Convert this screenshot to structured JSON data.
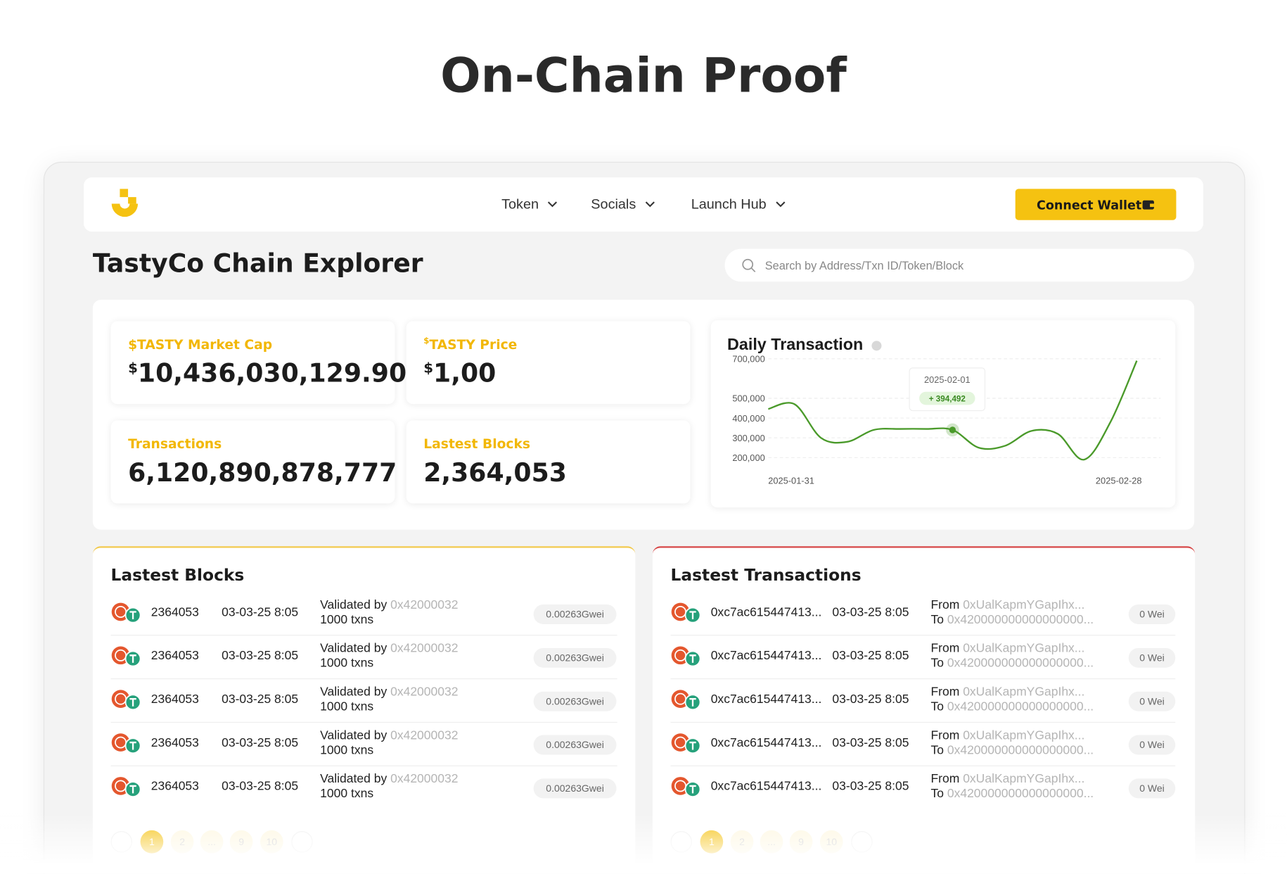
{
  "header": {
    "title": "On-Chain Proof"
  },
  "nav": {
    "items": [
      "Token",
      "Socials",
      "Launch Hub"
    ],
    "button": "Connect Wallet"
  },
  "page": {
    "title": "TastyCo Chain Explorer",
    "search_placeholder": "Search by Address/Txn ID/Token/Block"
  },
  "stats": [
    {
      "label": "$TASTY Market Cap",
      "prefix": "$",
      "value": "10,436,030,129.90"
    },
    {
      "label_prefix": "$",
      "label": "TASTY Price",
      "prefix": "$",
      "value": "1,00"
    },
    {
      "label": "Transactions",
      "value": "6,120,890,878,777"
    },
    {
      "label": "Lastest Blocks",
      "value": "2,364,053"
    }
  ],
  "chart_data": {
    "type": "line",
    "title": "Daily Transaction",
    "categories": [
      "2025-01-31",
      null,
      null,
      null,
      null,
      null,
      null,
      null,
      null,
      null,
      null,
      null,
      null,
      null,
      "2025-02-28"
    ],
    "series": [
      {
        "color": "#4a9a2a",
        "values": [
          446000,
          470000,
          300000,
          280000,
          340000,
          345000,
          345000,
          340000,
          250000,
          260000,
          335000,
          320000,
          190000,
          380000,
          690000
        ]
      }
    ],
    "ylim": [
      180000,
      720000
    ],
    "yticks": [
      {
        "value": 200000,
        "label": "200,000"
      },
      {
        "value": 300000,
        "label": "300,000"
      },
      {
        "value": 400000,
        "label": "400,000"
      },
      {
        "value": 500000,
        "label": "500,000"
      },
      {
        "value": 700000,
        "label": "700,000"
      }
    ],
    "grid": true,
    "tooltip": {
      "date": "2025-02-01",
      "value": "+ 394,492"
    }
  },
  "blocks": {
    "title": "Lastest Blocks",
    "rows": [
      {
        "block": "2364053",
        "time": "03-03-25 8:05",
        "validated_label": "Validated by",
        "validator": "0x42000032",
        "txns": "1000 txns",
        "fee": "0.00263Gwei"
      },
      {
        "block": "2364053",
        "time": "03-03-25 8:05",
        "validated_label": "Validated by",
        "validator": "0x42000032",
        "txns": "1000 txns",
        "fee": "0.00263Gwei"
      },
      {
        "block": "2364053",
        "time": "03-03-25 8:05",
        "validated_label": "Validated by",
        "validator": "0x42000032",
        "txns": "1000 txns",
        "fee": "0.00263Gwei"
      },
      {
        "block": "2364053",
        "time": "03-03-25 8:05",
        "validated_label": "Validated by",
        "validator": "0x42000032",
        "txns": "1000 txns",
        "fee": "0.00263Gwei"
      },
      {
        "block": "2364053",
        "time": "03-03-25 8:05",
        "validated_label": "Validated by",
        "validator": "0x42000032",
        "txns": "1000 txns",
        "fee": "0.00263Gwei"
      }
    ],
    "pages": [
      "1",
      "2",
      "...",
      "9",
      "10"
    ]
  },
  "transactions": {
    "title": "Lastest Transactions",
    "rows": [
      {
        "hash": "0xc7ac615447413...",
        "time": "03-03-25 8:05",
        "from_label": "From",
        "from": "0xUalKapmYGapIhx...",
        "to_label": "To",
        "to": "0x420000000000000000...",
        "value": "0 Wei"
      },
      {
        "hash": "0xc7ac615447413...",
        "time": "03-03-25 8:05",
        "from_label": "From",
        "from": "0xUalKapmYGapIhx...",
        "to_label": "To",
        "to": "0x420000000000000000...",
        "value": "0 Wei"
      },
      {
        "hash": "0xc7ac615447413...",
        "time": "03-03-25 8:05",
        "from_label": "From",
        "from": "0xUalKapmYGapIhx...",
        "to_label": "To",
        "to": "0x420000000000000000...",
        "value": "0 Wei"
      },
      {
        "hash": "0xc7ac615447413...",
        "time": "03-03-25 8:05",
        "from_label": "From",
        "from": "0xUalKapmYGapIhx...",
        "to_label": "To",
        "to": "0x420000000000000000...",
        "value": "0 Wei"
      },
      {
        "hash": "0xc7ac615447413...",
        "time": "03-03-25 8:05",
        "from_label": "From",
        "from": "0xUalKapmYGapIhx...",
        "to_label": "To",
        "to": "0x420000000000000000...",
        "value": "0 Wei"
      }
    ],
    "pages": [
      "1",
      "2",
      "...",
      "9",
      "10"
    ]
  }
}
